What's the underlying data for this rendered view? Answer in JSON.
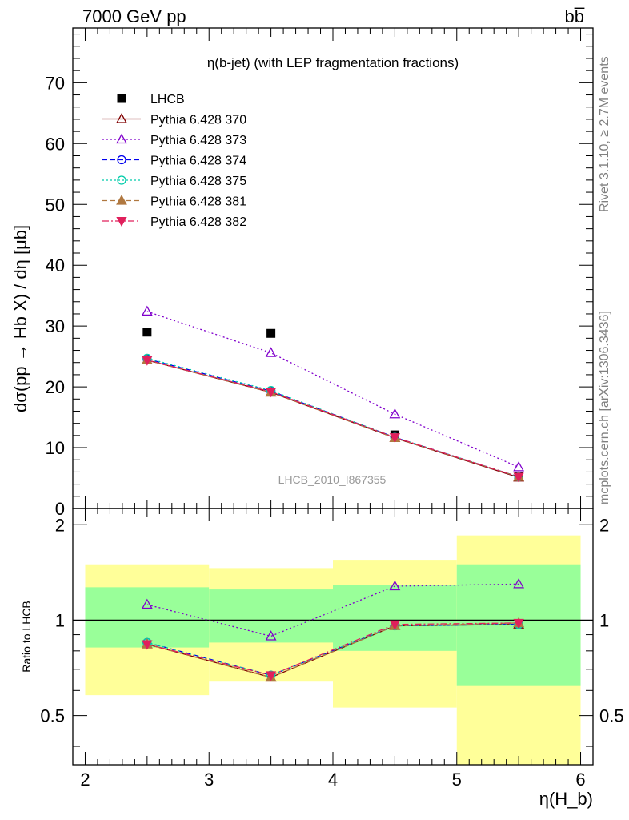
{
  "header": {
    "energy_label": "7000 GeV pp",
    "process_label": "bb̅"
  },
  "side_labels": {
    "rivet": "Rivet 3.1.10, ≥ 2.7M events",
    "mcplots": "mcplots.cern.ch [arXiv:1306.3436]"
  },
  "analysis_label": "LHCB_2010_I867355",
  "chart_data": [
    {
      "type": "scatter",
      "title": "η(b-jet) (with LEP fragmentation fractions)",
      "xlabel": "η(H_b)",
      "ylabel": "dσ(pp → H_b X) / dη [μb]",
      "xlim": [
        1.9,
        6.1
      ],
      "ylim": [
        0,
        79
      ],
      "x_ticks": [
        2,
        3,
        4,
        5,
        6
      ],
      "y_ticks": [
        0,
        10,
        20,
        30,
        40,
        50,
        60,
        70
      ],
      "y_tick_labels": [
        "0",
        "10",
        "20",
        "30",
        "40",
        "50",
        "60",
        "70"
      ],
      "x": [
        2.5,
        3.5,
        4.5,
        5.5
      ],
      "series": [
        {
          "name": "LHCB",
          "marker": "square",
          "color": "#000000",
          "line": "none",
          "values": [
            29.0,
            28.8,
            12.1,
            5.3
          ]
        },
        {
          "name": "Pythia 6.428 370",
          "marker": "triangle-up-open",
          "color": "#800000",
          "line": "solid",
          "values": [
            24.4,
            19.1,
            11.6,
            5.1
          ]
        },
        {
          "name": "Pythia 6.428 373",
          "marker": "triangle-up-open",
          "color": "#8000cc",
          "line": "dotted",
          "values": [
            32.4,
            25.6,
            15.5,
            6.8
          ]
        },
        {
          "name": "Pythia 6.428 374",
          "marker": "circle-open",
          "color": "#0000ee",
          "line": "dashed",
          "values": [
            24.6,
            19.3,
            11.7,
            5.2
          ]
        },
        {
          "name": "Pythia 6.428 375",
          "marker": "circle-open",
          "color": "#00ccaa",
          "line": "dotted",
          "values": [
            24.7,
            19.4,
            11.7,
            5.2
          ]
        },
        {
          "name": "Pythia 6.428 381",
          "marker": "triangle-up-filled",
          "color": "#b07840",
          "line": "dashed",
          "values": [
            24.4,
            19.1,
            11.6,
            5.2
          ]
        },
        {
          "name": "Pythia 6.428 382",
          "marker": "triangle-down-filled",
          "color": "#e0205c",
          "line": "dashdot",
          "values": [
            24.4,
            19.2,
            11.7,
            5.2
          ]
        }
      ]
    },
    {
      "type": "line",
      "ylabel": "Ratio to LHCB",
      "xlabel": "η(H_b)",
      "xlim": [
        1.9,
        6.1
      ],
      "ylim": [
        0.35,
        2.25
      ],
      "y_ticks": [
        0.5,
        1,
        2
      ],
      "y_tick_labels": [
        "0.5",
        "1",
        "2"
      ],
      "x_ticks": [
        2,
        3,
        4,
        5,
        6
      ],
      "x_tick_labels": [
        "2",
        "3",
        "4",
        "5",
        "6"
      ],
      "reference_line": 1,
      "bins": [
        [
          2,
          3
        ],
        [
          3,
          4
        ],
        [
          4,
          5
        ],
        [
          5,
          6
        ]
      ],
      "band_outer": [
        [
          0.58,
          1.5
        ],
        [
          0.64,
          1.46
        ],
        [
          0.53,
          1.55
        ],
        [
          0.0,
          1.85
        ]
      ],
      "band_inner": [
        [
          0.82,
          1.27
        ],
        [
          0.85,
          1.25
        ],
        [
          0.8,
          1.29
        ],
        [
          0.62,
          1.5
        ]
      ],
      "band_colors": {
        "outer": "#ffff99",
        "inner": "#99ff99"
      },
      "x": [
        2.5,
        3.5,
        4.5,
        5.5
      ],
      "series": [
        {
          "name": "Pythia 6.428 370",
          "values": [
            0.84,
            0.66,
            0.96,
            0.97
          ]
        },
        {
          "name": "Pythia 6.428 373",
          "values": [
            1.12,
            0.89,
            1.28,
            1.3
          ]
        },
        {
          "name": "Pythia 6.428 374",
          "values": [
            0.85,
            0.67,
            0.96,
            0.97
          ]
        },
        {
          "name": "Pythia 6.428 375",
          "values": [
            0.85,
            0.67,
            0.96,
            0.97
          ]
        },
        {
          "name": "Pythia 6.428 381",
          "values": [
            0.84,
            0.66,
            0.96,
            0.98
          ]
        },
        {
          "name": "Pythia 6.428 382",
          "values": [
            0.84,
            0.67,
            0.97,
            0.98
          ]
        }
      ]
    }
  ]
}
